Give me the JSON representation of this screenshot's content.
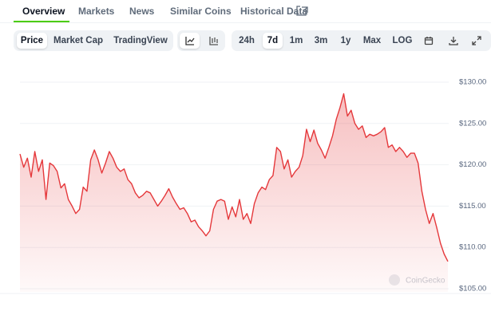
{
  "tabs": [
    "Overview",
    "Markets",
    "News",
    "Similar Coins",
    "Historical Data"
  ],
  "active_tab": 0,
  "toolbar": {
    "views": [
      "Price",
      "Market Cap",
      "TradingView"
    ],
    "active_view": 0,
    "ranges": [
      "24h",
      "7d",
      "1m",
      "3m",
      "1y",
      "Max",
      "LOG"
    ],
    "active_range": 1
  },
  "watermark": "CoinGecko",
  "chart_data": {
    "type": "line",
    "color": "#e5383b",
    "grid": true,
    "ylim": [
      105,
      130
    ],
    "yticks": [
      {
        "value": 105,
        "label": "$105.00"
      },
      {
        "value": 110,
        "label": "$110.00"
      },
      {
        "value": 115,
        "label": "$115.00"
      },
      {
        "value": 120,
        "label": "$120.00"
      },
      {
        "value": 125,
        "label": "$125.00"
      },
      {
        "value": 130,
        "label": "$130.00"
      }
    ],
    "values": [
      121.3,
      119.7,
      120.8,
      118.5,
      121.6,
      119.2,
      120.6,
      115.8,
      120.2,
      119.9,
      119.2,
      117.2,
      117.7,
      115.8,
      115.0,
      114.1,
      114.6,
      117.3,
      116.8,
      120.6,
      121.8,
      120.6,
      119.0,
      120.2,
      121.6,
      120.8,
      119.7,
      119.2,
      119.5,
      118.2,
      117.7,
      116.6,
      116.0,
      116.3,
      116.8,
      116.6,
      115.8,
      115.0,
      115.6,
      116.3,
      117.1,
      116.1,
      115.3,
      114.6,
      114.8,
      114.1,
      113.1,
      113.3,
      112.5,
      112.0,
      111.4,
      112.0,
      114.6,
      115.6,
      115.8,
      115.6,
      113.4,
      114.9,
      113.7,
      115.8,
      113.4,
      114.1,
      112.9,
      115.3,
      116.6,
      117.3,
      117.0,
      118.2,
      118.7,
      122.1,
      121.6,
      119.5,
      120.6,
      118.5,
      119.2,
      119.7,
      121.1,
      124.3,
      122.8,
      124.2,
      122.6,
      121.8,
      120.8,
      122.1,
      123.5,
      125.5,
      126.9,
      128.6,
      125.9,
      126.6,
      125.0,
      124.3,
      124.7,
      123.3,
      123.7,
      123.5,
      123.7,
      124.0,
      124.5,
      122.1,
      122.4,
      121.6,
      122.1,
      121.6,
      120.9,
      121.4,
      121.4,
      120.2,
      116.8,
      114.6,
      112.9,
      114.1,
      112.4,
      110.5,
      109.2,
      108.3
    ]
  }
}
